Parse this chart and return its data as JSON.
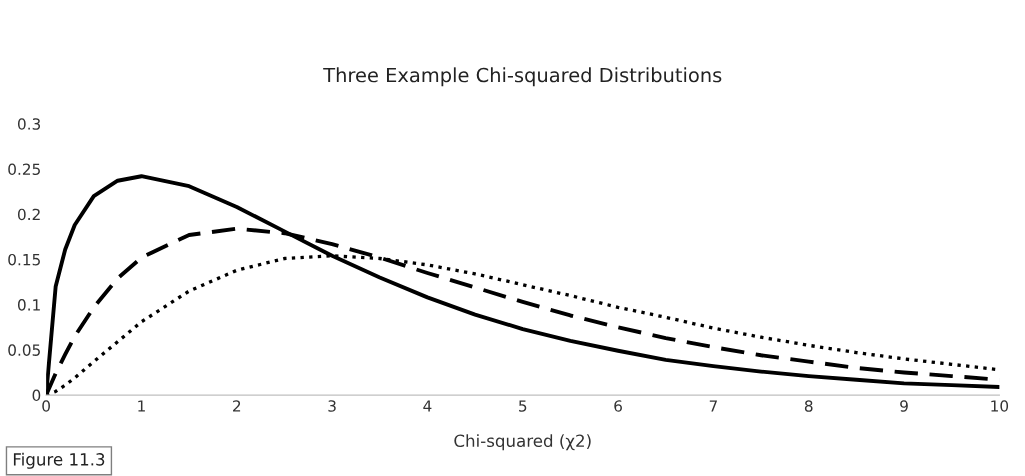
{
  "chart_data": {
    "type": "line",
    "title": "Three Example Chi-squared Distributions",
    "xlabel": "Chi-squared (χ2)",
    "x": [
      0,
      0.1,
      0.2,
      0.3,
      0.5,
      0.75,
      1,
      1.5,
      2,
      2.5,
      3,
      3.5,
      4,
      4.5,
      5,
      5.5,
      6,
      6.5,
      7,
      7.5,
      8,
      8.5,
      9,
      9.5,
      10
    ],
    "series": [
      {
        "color": "#000000",
        "line_style": "solid",
        "values": [
          0,
          0.12,
          0.161,
          0.188,
          0.22,
          0.237,
          0.242,
          0.231,
          0.208,
          0.181,
          0.154,
          0.13,
          0.108,
          0.089,
          0.073,
          0.06,
          0.049,
          0.039,
          0.032,
          0.026,
          0.021,
          0.017,
          0.013,
          0.011,
          0.009
        ]
      },
      {
        "color": "#000000",
        "line_style": "dashed",
        "values": [
          0,
          0.024,
          0.045,
          0.065,
          0.097,
          0.129,
          0.152,
          0.177,
          0.184,
          0.179,
          0.167,
          0.152,
          0.135,
          0.119,
          0.103,
          0.088,
          0.075,
          0.063,
          0.053,
          0.044,
          0.037,
          0.03,
          0.025,
          0.021,
          0.017
        ]
      },
      {
        "color": "#000000",
        "line_style": "dotted",
        "values": [
          0,
          0.004,
          0.011,
          0.019,
          0.037,
          0.059,
          0.081,
          0.115,
          0.138,
          0.151,
          0.154,
          0.151,
          0.144,
          0.134,
          0.122,
          0.11,
          0.097,
          0.086,
          0.074,
          0.064,
          0.055,
          0.047,
          0.04,
          0.034,
          0.028
        ]
      }
    ],
    "xlim": [
      0,
      10
    ],
    "xticks": [
      0,
      1,
      2,
      3,
      4,
      5,
      6,
      7,
      8,
      9,
      10
    ],
    "ylim": [
      0,
      0.3
    ],
    "yticks": [
      0,
      0.05,
      0.1,
      0.15,
      0.2,
      0.25,
      0.3
    ],
    "grid": false,
    "legend": false,
    "annotations": [
      "Figure 11.3"
    ]
  }
}
